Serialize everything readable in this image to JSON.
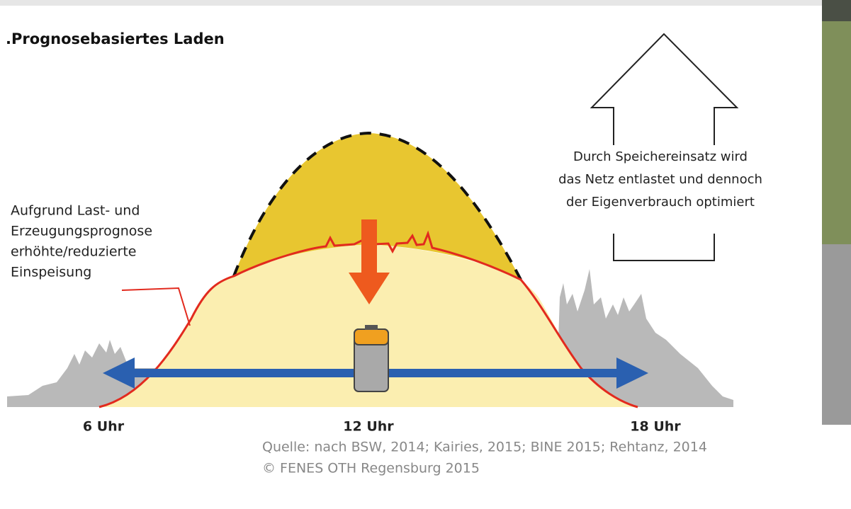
{
  "header": {
    "title": ".Prognosebasiertes Laden"
  },
  "annotation": {
    "lines": [
      "Aufgrund Last- und",
      "Erzeugungsprognose",
      "erhöhte/reduzierte",
      "Einspeisung"
    ]
  },
  "callout": {
    "lines": [
      "Durch Speichereinsatz wird",
      "das Netz entlastet und dennoch",
      "der Eigenverbrauch optimiert"
    ]
  },
  "time_labels": [
    "6 Uhr",
    "12 Uhr",
    "18 Uhr"
  ],
  "source": {
    "lines": [
      "Quelle: nach BSW, 2014; Kairies, 2015; BINE 2015; Rehtanz, 2014",
      "© FENES OTH Regensburg 2015"
    ]
  }
}
